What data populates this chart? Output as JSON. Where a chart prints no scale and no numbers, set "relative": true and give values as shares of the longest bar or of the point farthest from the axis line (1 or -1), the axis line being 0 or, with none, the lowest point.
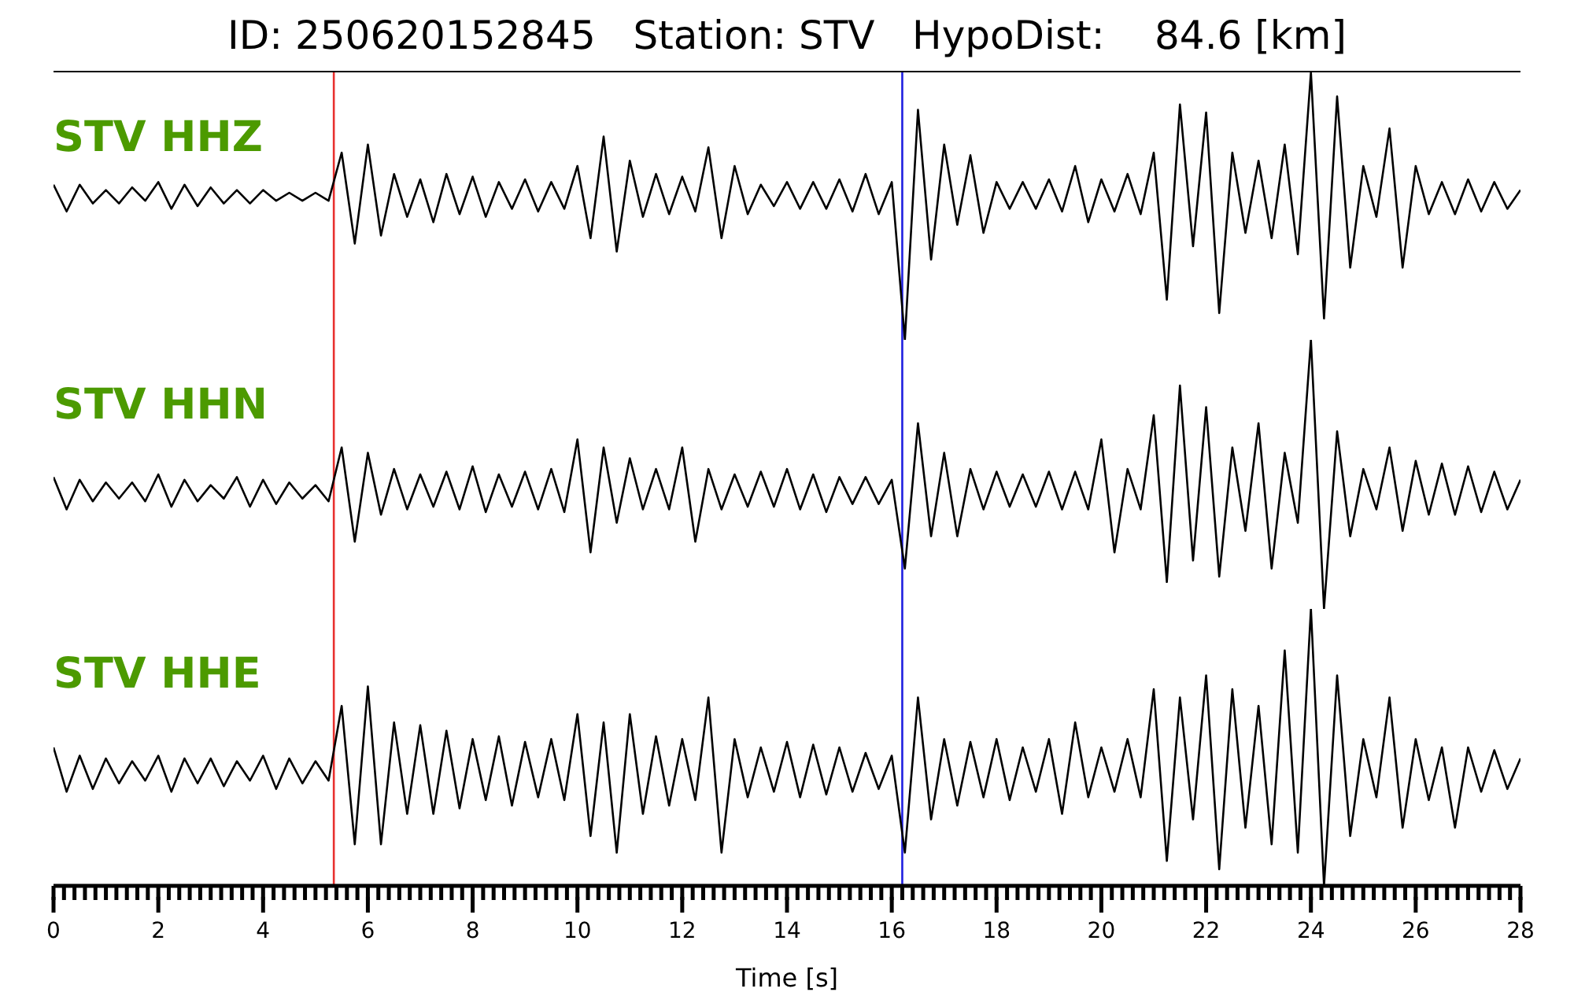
{
  "chart_data": [
    {
      "type": "line",
      "title": "ID: 250620152845   Station: STV   HypoDist:    84.6 [km]",
      "relative": true,
      "tick_labels": false,
      "xlim": [
        0,
        28
      ],
      "x": [
        0,
        0.25,
        0.5,
        0.75,
        1,
        1.25,
        1.5,
        1.75,
        2,
        2.25,
        2.5,
        2.75,
        3,
        3.25,
        3.5,
        3.75,
        4,
        4.25,
        4.5,
        4.75,
        5,
        5.25,
        5.5,
        5.75,
        6,
        6.25,
        6.5,
        6.75,
        7,
        7.25,
        7.5,
        7.75,
        8,
        8.25,
        8.5,
        8.75,
        9,
        9.25,
        9.5,
        9.75,
        10,
        10.25,
        10.5,
        10.75,
        11,
        11.25,
        11.5,
        11.75,
        12,
        12.25,
        12.5,
        12.75,
        13,
        13.25,
        13.5,
        13.75,
        14,
        14.25,
        14.5,
        14.75,
        15,
        15.25,
        15.5,
        15.75,
        16,
        16.25,
        16.5,
        16.75,
        17,
        17.25,
        17.5,
        17.75,
        18,
        18.25,
        18.5,
        18.75,
        19,
        19.25,
        19.5,
        19.75,
        20,
        20.25,
        20.5,
        20.75,
        21,
        21.25,
        21.5,
        21.75,
        22,
        22.25,
        22.5,
        22.75,
        23,
        23.25,
        23.5,
        23.75,
        24,
        24.25,
        24.5,
        24.75,
        25,
        25.25,
        25.5,
        25.75,
        26,
        26.25,
        26.5,
        26.75,
        27,
        27.25,
        27.5,
        27.75,
        28
      ],
      "series": [
        {
          "name": "STV HHZ",
          "color": "#000000",
          "values": [
            0.58,
            0.48,
            0.58,
            0.51,
            0.56,
            0.51,
            0.57,
            0.52,
            0.59,
            0.49,
            0.58,
            0.5,
            0.57,
            0.51,
            0.56,
            0.51,
            0.56,
            0.52,
            0.55,
            0.52,
            0.55,
            0.52,
            0.7,
            0.36,
            0.73,
            0.39,
            0.62,
            0.46,
            0.6,
            0.44,
            0.62,
            0.47,
            0.61,
            0.46,
            0.59,
            0.49,
            0.6,
            0.48,
            0.59,
            0.49,
            0.65,
            0.38,
            0.76,
            0.33,
            0.67,
            0.46,
            0.62,
            0.47,
            0.61,
            0.48,
            0.72,
            0.38,
            0.65,
            0.47,
            0.58,
            0.5,
            0.59,
            0.49,
            0.59,
            0.49,
            0.6,
            0.48,
            0.62,
            0.47,
            0.59,
            0,
            0.86,
            0.3,
            0.73,
            0.43,
            0.69,
            0.4,
            0.59,
            0.49,
            0.59,
            0.49,
            0.6,
            0.48,
            0.65,
            0.44,
            0.6,
            0.48,
            0.62,
            0.47,
            0.7,
            0.15,
            0.88,
            0.35,
            0.85,
            0.1,
            0.7,
            0.4,
            0.67,
            0.38,
            0.73,
            0.32,
            1,
            0.08,
            0.91,
            0.27,
            0.65,
            0.46,
            0.79,
            0.27,
            0.65,
            0.47,
            0.59,
            0.47,
            0.6,
            0.48,
            0.59,
            0.49,
            0.56
          ]
        }
      ],
      "ref_lines": [
        {
          "axis": "x",
          "value": 5.35,
          "color": "#e8312f"
        },
        {
          "axis": "x",
          "value": 16.2,
          "color": "#1f1fe0"
        }
      ]
    },
    {
      "type": "line",
      "relative": true,
      "tick_labels": false,
      "xlim": [
        0,
        28
      ],
      "x": [
        0,
        0.25,
        0.5,
        0.75,
        1,
        1.25,
        1.5,
        1.75,
        2,
        2.25,
        2.5,
        2.75,
        3,
        3.25,
        3.5,
        3.75,
        4,
        4.25,
        4.5,
        4.75,
        5,
        5.25,
        5.5,
        5.75,
        6,
        6.25,
        6.5,
        6.75,
        7,
        7.25,
        7.5,
        7.75,
        8,
        8.25,
        8.5,
        8.75,
        9,
        9.25,
        9.5,
        9.75,
        10,
        10.25,
        10.5,
        10.75,
        11,
        11.25,
        11.5,
        11.75,
        12,
        12.25,
        12.5,
        12.75,
        13,
        13.25,
        13.5,
        13.75,
        14,
        14.25,
        14.5,
        14.75,
        15,
        15.25,
        15.5,
        15.75,
        16,
        16.25,
        16.5,
        16.75,
        17,
        17.25,
        17.5,
        17.75,
        18,
        18.25,
        18.5,
        18.75,
        19,
        19.25,
        19.5,
        19.75,
        20,
        20.25,
        20.5,
        20.75,
        21,
        21.25,
        21.5,
        21.75,
        22,
        22.25,
        22.5,
        22.75,
        23,
        23.25,
        23.5,
        23.75,
        24,
        24.25,
        24.5,
        24.75,
        25,
        25.25,
        25.5,
        25.75,
        26,
        26.25,
        26.5,
        26.75,
        27,
        27.25,
        27.5,
        27.75,
        28
      ],
      "series": [
        {
          "name": "STV HHN",
          "color": "#000000",
          "values": [
            0.49,
            0.37,
            0.48,
            0.4,
            0.47,
            0.41,
            0.47,
            0.4,
            0.5,
            0.38,
            0.48,
            0.4,
            0.46,
            0.41,
            0.49,
            0.38,
            0.48,
            0.39,
            0.47,
            0.41,
            0.46,
            0.4,
            0.6,
            0.25,
            0.58,
            0.35,
            0.52,
            0.37,
            0.5,
            0.38,
            0.51,
            0.37,
            0.53,
            0.36,
            0.5,
            0.38,
            0.51,
            0.37,
            0.52,
            0.36,
            0.63,
            0.21,
            0.6,
            0.32,
            0.56,
            0.37,
            0.52,
            0.37,
            0.6,
            0.25,
            0.52,
            0.37,
            0.5,
            0.38,
            0.51,
            0.38,
            0.52,
            0.37,
            0.5,
            0.36,
            0.49,
            0.39,
            0.49,
            0.39,
            0.48,
            0.15,
            0.69,
            0.27,
            0.58,
            0.27,
            0.52,
            0.37,
            0.51,
            0.38,
            0.5,
            0.38,
            0.51,
            0.37,
            0.51,
            0.37,
            0.63,
            0.21,
            0.52,
            0.37,
            0.72,
            0.1,
            0.83,
            0.18,
            0.75,
            0.12,
            0.6,
            0.29,
            0.69,
            0.15,
            0.58,
            0.32,
            1,
            0,
            0.66,
            0.27,
            0.52,
            0.37,
            0.6,
            0.29,
            0.55,
            0.35,
            0.54,
            0.35,
            0.53,
            0.36,
            0.51,
            0.37,
            0.48
          ]
        }
      ],
      "ref_lines": [
        {
          "axis": "x",
          "value": 5.35,
          "color": "#e8312f"
        },
        {
          "axis": "x",
          "value": 16.2,
          "color": "#1f1fe0"
        }
      ]
    },
    {
      "type": "line",
      "relative": true,
      "tick_labels": "x",
      "xlim": [
        0,
        28
      ],
      "xlabel": "Time [s]",
      "x": [
        0,
        0.25,
        0.5,
        0.75,
        1,
        1.25,
        1.5,
        1.75,
        2,
        2.25,
        2.5,
        2.75,
        3,
        3.25,
        3.5,
        3.75,
        4,
        4.25,
        4.5,
        4.75,
        5,
        5.25,
        5.5,
        5.75,
        6,
        6.25,
        6.5,
        6.75,
        7,
        7.25,
        7.5,
        7.75,
        8,
        8.25,
        8.5,
        8.75,
        9,
        9.25,
        9.5,
        9.75,
        10,
        10.25,
        10.5,
        10.75,
        11,
        11.25,
        11.5,
        11.75,
        12,
        12.25,
        12.5,
        12.75,
        13,
        13.25,
        13.5,
        13.75,
        14,
        14.25,
        14.5,
        14.75,
        15,
        15.25,
        15.5,
        15.75,
        16,
        16.25,
        16.5,
        16.75,
        17,
        17.25,
        17.5,
        17.75,
        18,
        18.25,
        18.5,
        18.75,
        19,
        19.25,
        19.5,
        19.75,
        20,
        20.25,
        20.5,
        20.75,
        21,
        21.25,
        21.5,
        21.75,
        22,
        22.25,
        22.5,
        22.75,
        23,
        23.25,
        23.5,
        23.75,
        24,
        24.25,
        24.5,
        24.75,
        25,
        25.25,
        25.5,
        25.75,
        26,
        26.25,
        26.5,
        26.75,
        27,
        27.25,
        27.5,
        27.75,
        28
      ],
      "series": [
        {
          "name": "STV HHE",
          "color": "#000000",
          "values": [
            0.5,
            0.34,
            0.47,
            0.35,
            0.46,
            0.37,
            0.45,
            0.38,
            0.47,
            0.34,
            0.46,
            0.37,
            0.46,
            0.36,
            0.45,
            0.38,
            0.47,
            0.35,
            0.46,
            0.37,
            0.45,
            0.38,
            0.65,
            0.15,
            0.72,
            0.15,
            0.59,
            0.26,
            0.58,
            0.26,
            0.56,
            0.28,
            0.53,
            0.31,
            0.54,
            0.29,
            0.52,
            0.32,
            0.53,
            0.31,
            0.62,
            0.18,
            0.59,
            0.12,
            0.62,
            0.26,
            0.54,
            0.29,
            0.53,
            0.31,
            0.68,
            0.12,
            0.53,
            0.32,
            0.5,
            0.34,
            0.52,
            0.32,
            0.51,
            0.33,
            0.5,
            0.34,
            0.48,
            0.35,
            0.47,
            0.12,
            0.68,
            0.24,
            0.53,
            0.29,
            0.52,
            0.32,
            0.53,
            0.31,
            0.5,
            0.34,
            0.53,
            0.26,
            0.59,
            0.32,
            0.5,
            0.34,
            0.53,
            0.32,
            0.71,
            0.09,
            0.68,
            0.24,
            0.76,
            0.06,
            0.71,
            0.21,
            0.65,
            0.15,
            0.85,
            0.12,
            1,
            0,
            0.76,
            0.18,
            0.53,
            0.32,
            0.68,
            0.21,
            0.53,
            0.31,
            0.5,
            0.21,
            0.5,
            0.34,
            0.49,
            0.35,
            0.46
          ]
        }
      ],
      "ref_lines": [
        {
          "axis": "x",
          "value": 5.35,
          "color": "#e8312f"
        },
        {
          "axis": "x",
          "value": 16.2,
          "color": "#1f1fe0"
        }
      ],
      "xticks": [
        0,
        {
          "value": 0.2,
          "label": null
        },
        {
          "value": 0.4,
          "label": null
        },
        {
          "value": 0.6,
          "label": null
        },
        {
          "value": 0.8,
          "label": null
        },
        {
          "value": 1,
          "label": null
        },
        {
          "value": 1.2,
          "label": null
        },
        {
          "value": 1.4,
          "label": null
        },
        {
          "value": 1.6,
          "label": null
        },
        {
          "value": 1.8,
          "label": null
        },
        2,
        {
          "value": 2.2,
          "label": null
        },
        {
          "value": 2.4,
          "label": null
        },
        {
          "value": 2.6,
          "label": null
        },
        {
          "value": 2.8,
          "label": null
        },
        {
          "value": 3,
          "label": null
        },
        {
          "value": 3.2,
          "label": null
        },
        {
          "value": 3.4,
          "label": null
        },
        {
          "value": 3.6,
          "label": null
        },
        {
          "value": 3.8,
          "label": null
        },
        4,
        {
          "value": 4.2,
          "label": null
        },
        {
          "value": 4.4,
          "label": null
        },
        {
          "value": 4.6,
          "label": null
        },
        {
          "value": 4.8,
          "label": null
        },
        {
          "value": 5,
          "label": null
        },
        {
          "value": 5.2,
          "label": null
        },
        {
          "value": 5.4,
          "label": null
        },
        {
          "value": 5.6,
          "label": null
        },
        {
          "value": 5.8,
          "label": null
        },
        6,
        {
          "value": 6.2,
          "label": null
        },
        {
          "value": 6.4,
          "label": null
        },
        {
          "value": 6.6,
          "label": null
        },
        {
          "value": 6.8,
          "label": null
        },
        {
          "value": 7,
          "label": null
        },
        {
          "value": 7.2,
          "label": null
        },
        {
          "value": 7.4,
          "label": null
        },
        {
          "value": 7.6,
          "label": null
        },
        {
          "value": 7.8,
          "label": null
        },
        8,
        {
          "value": 8.2,
          "label": null
        },
        {
          "value": 8.4,
          "label": null
        },
        {
          "value": 8.6,
          "label": null
        },
        {
          "value": 8.8,
          "label": null
        },
        {
          "value": 9,
          "label": null
        },
        {
          "value": 9.2,
          "label": null
        },
        {
          "value": 9.4,
          "label": null
        },
        {
          "value": 9.6,
          "label": null
        },
        {
          "value": 9.8,
          "label": null
        },
        10,
        {
          "value": 10.2,
          "label": null
        },
        {
          "value": 10.4,
          "label": null
        },
        {
          "value": 10.6,
          "label": null
        },
        {
          "value": 10.8,
          "label": null
        },
        {
          "value": 11,
          "label": null
        },
        {
          "value": 11.2,
          "label": null
        },
        {
          "value": 11.4,
          "label": null
        },
        {
          "value": 11.6,
          "label": null
        },
        {
          "value": 11.8,
          "label": null
        },
        12,
        {
          "value": 12.2,
          "label": null
        },
        {
          "value": 12.4,
          "label": null
        },
        {
          "value": 12.6,
          "label": null
        },
        {
          "value": 12.8,
          "label": null
        },
        {
          "value": 13,
          "label": null
        },
        {
          "value": 13.2,
          "label": null
        },
        {
          "value": 13.4,
          "label": null
        },
        {
          "value": 13.6,
          "label": null
        },
        {
          "value": 13.8,
          "label": null
        },
        14,
        {
          "value": 14.2,
          "label": null
        },
        {
          "value": 14.4,
          "label": null
        },
        {
          "value": 14.6,
          "label": null
        },
        {
          "value": 14.8,
          "label": null
        },
        {
          "value": 15,
          "label": null
        },
        {
          "value": 15.2,
          "label": null
        },
        {
          "value": 15.4,
          "label": null
        },
        {
          "value": 15.6,
          "label": null
        },
        {
          "value": 15.8,
          "label": null
        },
        16,
        {
          "value": 16.2,
          "label": null
        },
        {
          "value": 16.4,
          "label": null
        },
        {
          "value": 16.6,
          "label": null
        },
        {
          "value": 16.8,
          "label": null
        },
        {
          "value": 17,
          "label": null
        },
        {
          "value": 17.2,
          "label": null
        },
        {
          "value": 17.4,
          "label": null
        },
        {
          "value": 17.6,
          "label": null
        },
        {
          "value": 17.8,
          "label": null
        },
        18,
        {
          "value": 18.2,
          "label": null
        },
        {
          "value": 18.4,
          "label": null
        },
        {
          "value": 18.6,
          "label": null
        },
        {
          "value": 18.8,
          "label": null
        },
        {
          "value": 19,
          "label": null
        },
        {
          "value": 19.2,
          "label": null
        },
        {
          "value": 19.4,
          "label": null
        },
        {
          "value": 19.6,
          "label": null
        },
        {
          "value": 19.8,
          "label": null
        },
        20,
        {
          "value": 20.2,
          "label": null
        },
        {
          "value": 20.4,
          "label": null
        },
        {
          "value": 20.6,
          "label": null
        },
        {
          "value": 20.8,
          "label": null
        },
        {
          "value": 21,
          "label": null
        },
        {
          "value": 21.2,
          "label": null
        },
        {
          "value": 21.4,
          "label": null
        },
        {
          "value": 21.6,
          "label": null
        },
        {
          "value": 21.8,
          "label": null
        },
        22,
        {
          "value": 22.2,
          "label": null
        },
        {
          "value": 22.4,
          "label": null
        },
        {
          "value": 22.6,
          "label": null
        },
        {
          "value": 22.8,
          "label": null
        },
        {
          "value": 23,
          "label": null
        },
        {
          "value": 23.2,
          "label": null
        },
        {
          "value": 23.4,
          "label": null
        },
        {
          "value": 23.6,
          "label": null
        },
        {
          "value": 23.8,
          "label": null
        },
        24,
        {
          "value": 24.2,
          "label": null
        },
        {
          "value": 24.4,
          "label": null
        },
        {
          "value": 24.6,
          "label": null
        },
        {
          "value": 24.8,
          "label": null
        },
        {
          "value": 25,
          "label": null
        },
        {
          "value": 25.2,
          "label": null
        },
        {
          "value": 25.4,
          "label": null
        },
        {
          "value": 25.6,
          "label": null
        },
        {
          "value": 25.8,
          "label": null
        },
        26,
        {
          "value": 26.2,
          "label": null
        },
        {
          "value": 26.4,
          "label": null
        },
        {
          "value": 26.6,
          "label": null
        },
        {
          "value": 26.8,
          "label": null
        },
        {
          "value": 27,
          "label": null
        },
        {
          "value": 27.2,
          "label": null
        },
        {
          "value": 27.4,
          "label": null
        },
        {
          "value": 27.6,
          "label": null
        },
        {
          "value": 27.8,
          "label": null
        },
        28
      ]
    }
  ]
}
